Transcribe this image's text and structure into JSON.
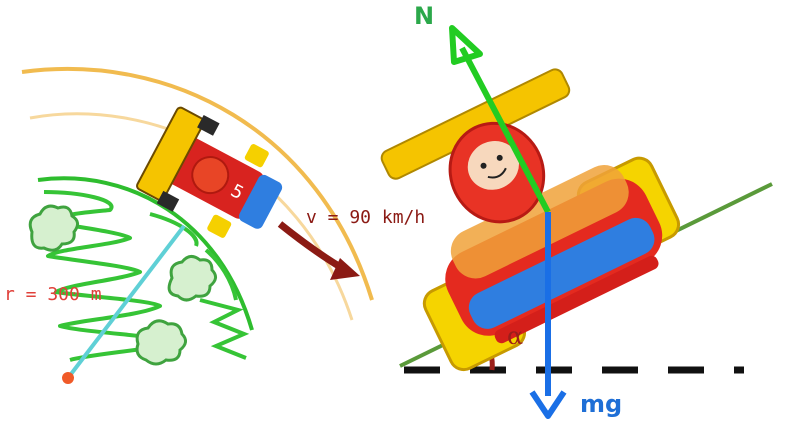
{
  "labels": {
    "radius": "r = 300 m",
    "velocity": "v = 90 km/h",
    "normal_force": "N",
    "weight": "mg",
    "angle": "α"
  },
  "colors": {
    "normal_vector": "#22cc22",
    "weight_vector": "#1a6fe6",
    "velocity_arrow": "#8b1a14",
    "track_curve": "#f0b43c",
    "slope_line": "#5a9a3a",
    "radius_line": "#5fd0d6",
    "center_point": "#f05a28"
  }
}
